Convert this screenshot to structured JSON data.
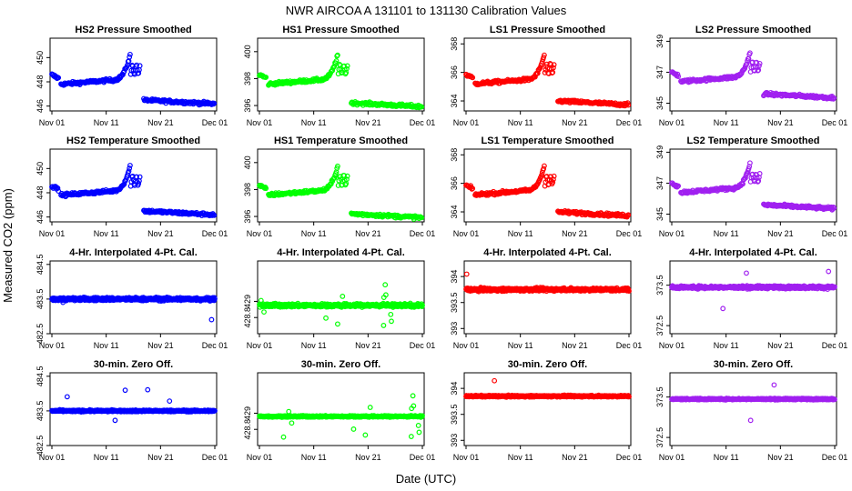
{
  "title": "NWR   AIRCOA A   131101 to 131130   Calibration Values",
  "xlabel": "Date (UTC)",
  "ylabel": "Measured CO2 (ppm)",
  "colors": {
    "HS2": "#0000ff",
    "HS1": "#00ff00",
    "LS1": "#ff0000",
    "LS2": "#a020f0"
  },
  "x_ticks": [
    "Nov 01",
    "Nov 11",
    "Nov 21",
    "Dec 01"
  ],
  "chart_data": [
    {
      "type": "scatter",
      "title": "HS2 Pressure Smoothed",
      "series": "HS2",
      "ylim": [
        445.6,
        451.6
      ],
      "yticks": [
        446,
        448,
        450
      ],
      "pattern": "smooth",
      "base": 447.8,
      "post": 446.5
    },
    {
      "type": "scatter",
      "title": "HS1 Pressure Smoothed",
      "series": "HS1",
      "ylim": [
        395.6,
        401.0
      ],
      "yticks": [
        396,
        398,
        400
      ],
      "pattern": "smooth",
      "base": 397.6,
      "post": 396.2
    },
    {
      "type": "scatter",
      "title": "LS1 Pressure Smoothed",
      "series": "LS1",
      "ylim": [
        363.3,
        368.4
      ],
      "yticks": [
        364,
        366,
        368
      ],
      "pattern": "smooth",
      "base": 365.2,
      "post": 364.0
    },
    {
      "type": "scatter",
      "title": "LS2 Pressure Smoothed",
      "series": "LS2",
      "ylim": [
        344.5,
        349.2
      ],
      "yticks": [
        345,
        347,
        349
      ],
      "pattern": "smooth",
      "base": 346.4,
      "post": 345.6
    },
    {
      "type": "scatter",
      "title": "HS2 Temperature Smoothed",
      "series": "HS2",
      "ylim": [
        445.6,
        451.6
      ],
      "yticks": [
        446,
        448,
        450
      ],
      "pattern": "smooth",
      "base": 447.8,
      "post": 446.5
    },
    {
      "type": "scatter",
      "title": "HS1 Temperature Smoothed",
      "series": "HS1",
      "ylim": [
        395.6,
        401.0
      ],
      "yticks": [
        396,
        398,
        400
      ],
      "pattern": "smooth",
      "base": 397.6,
      "post": 396.2
    },
    {
      "type": "scatter",
      "title": "LS1 Temperature Smoothed",
      "series": "LS1",
      "ylim": [
        363.3,
        368.4
      ],
      "yticks": [
        364,
        366,
        368
      ],
      "pattern": "smooth",
      "base": 365.2,
      "post": 364.0
    },
    {
      "type": "scatter",
      "title": "LS2 Temperature Smoothed",
      "series": "LS2",
      "ylim": [
        344.5,
        349.2
      ],
      "yticks": [
        345,
        347,
        349
      ],
      "pattern": "smooth",
      "base": 346.4,
      "post": 345.6
    },
    {
      "type": "scatter",
      "title": "4-Hr. Interpolated 4-Pt. Cal.",
      "series": "HS2",
      "ylim": [
        482.5,
        484.6
      ],
      "yticks": [
        482.5,
        483.5,
        484.5
      ],
      "pattern": "flat",
      "center": 483.5,
      "spread": 0.08
    },
    {
      "type": "scatter",
      "title": "4-Hr. Interpolated 4-Pt. Cal.",
      "series": "HS1",
      "ylim": [
        428.6,
        429.5
      ],
      "yticks": [
        428.8,
        429.0
      ],
      "pattern": "flat",
      "center": 428.95,
      "spread": 0.035
    },
    {
      "type": "scatter",
      "title": "4-Hr. Interpolated 4-Pt. Cal.",
      "series": "LS1",
      "ylim": [
        392.9,
        394.3
      ],
      "yticks": [
        393.0,
        393.5,
        394.0
      ],
      "pattern": "flat",
      "center": 393.75,
      "spread": 0.05
    },
    {
      "type": "scatter",
      "title": "4-Hr. Interpolated 4-Pt. Cal.",
      "series": "LS2",
      "ylim": [
        372.3,
        374.1
      ],
      "yticks": [
        372.5,
        373.5
      ],
      "pattern": "flat",
      "center": 373.45,
      "spread": 0.06
    },
    {
      "type": "scatter",
      "title": "30-min. Zero Off.",
      "series": "HS2",
      "ylim": [
        482.5,
        484.6
      ],
      "yticks": [
        482.5,
        483.5,
        484.5
      ],
      "pattern": "flat",
      "center": 483.5,
      "spread": 0.04
    },
    {
      "type": "scatter",
      "title": "30-min. Zero Off.",
      "series": "HS1",
      "ylim": [
        428.6,
        429.5
      ],
      "yticks": [
        428.8,
        429.0
      ],
      "pattern": "flat",
      "center": 428.96,
      "spread": 0.015
    },
    {
      "type": "scatter",
      "title": "30-min. Zero Off.",
      "series": "LS1",
      "ylim": [
        392.9,
        394.3
      ],
      "yticks": [
        393.0,
        393.5,
        394.0
      ],
      "pattern": "flat",
      "center": 393.85,
      "spread": 0.025
    },
    {
      "type": "scatter",
      "title": "30-min. Zero Off.",
      "series": "LS2",
      "ylim": [
        372.3,
        374.1
      ],
      "yticks": [
        372.5,
        373.5
      ],
      "pattern": "flat",
      "center": 373.45,
      "spread": 0.03
    }
  ]
}
